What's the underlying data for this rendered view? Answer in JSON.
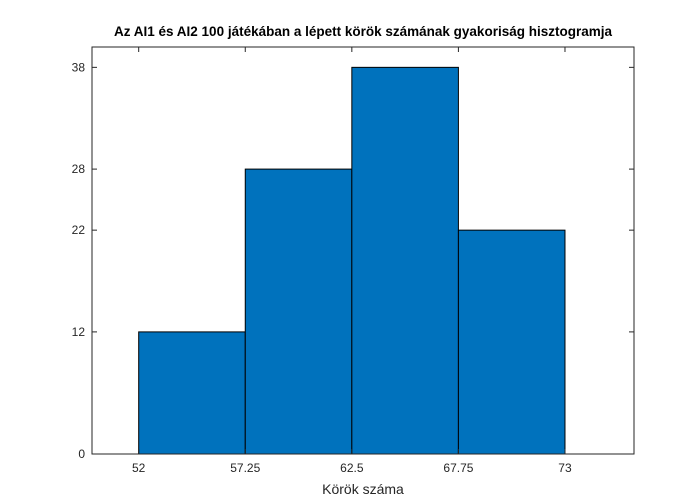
{
  "chart_data": {
    "type": "bar",
    "title": "Az AI1 és AI2 100 játékában a lépett körök számának gyakoriság hisztogramja",
    "xlabel": "Körök száma",
    "ylabel": "",
    "bin_edges": [
      52,
      57.25,
      62.5,
      67.75,
      73
    ],
    "values": [
      12,
      28,
      38,
      22
    ],
    "xticks": [
      52,
      57.25,
      62.5,
      67.75,
      73
    ],
    "xtick_labels": [
      "52",
      "57.25",
      "62.5",
      "67.75",
      "73"
    ],
    "yticks": [
      0,
      12,
      22,
      28,
      38
    ],
    "ytick_labels": [
      "0",
      "12",
      "22",
      "28",
      "38"
    ],
    "xlim": [
      49.7,
      76.4
    ],
    "ylim": [
      0,
      40
    ],
    "grid": false,
    "bar_color": "#0072BD"
  }
}
